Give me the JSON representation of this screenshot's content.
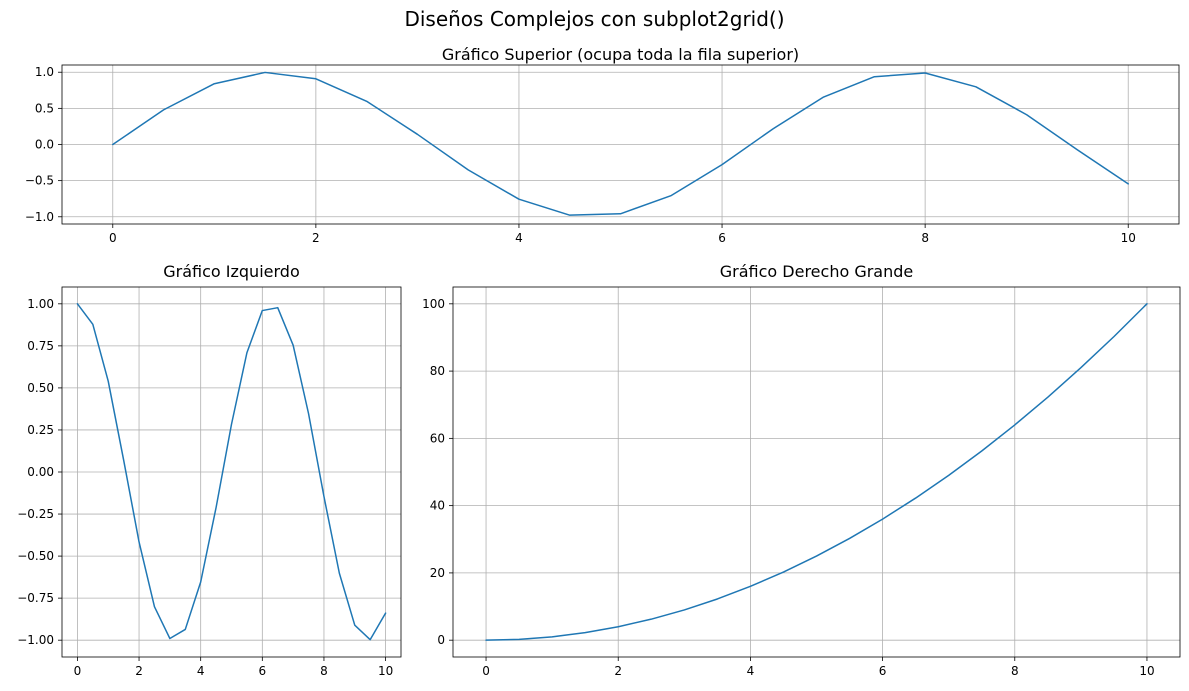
{
  "figure": {
    "title": "Diseños Complejos con subplot2grid()"
  },
  "chart_data": [
    {
      "type": "line",
      "title": "Gráfico Superior (ocupa toda la fila superior)",
      "xlabel": "",
      "ylabel": "",
      "xlim": [
        -0.5,
        10.5
      ],
      "ylim": [
        -1.1,
        1.1
      ],
      "xticks": [
        0,
        2,
        4,
        6,
        8,
        10
      ],
      "yticks": [
        -1.0,
        -0.5,
        0.0,
        0.5,
        1.0
      ],
      "xtick_labels": [
        "0",
        "2",
        "4",
        "6",
        "8",
        "10"
      ],
      "ytick_labels": [
        "−1.0",
        "−0.5",
        "0.0",
        "0.5",
        "1.0"
      ],
      "grid": true,
      "series": [
        {
          "color": "#1f77b4",
          "x": [
            0,
            0.5,
            1,
            1.5,
            2,
            2.5,
            3,
            3.5,
            4,
            4.5,
            5,
            5.5,
            6,
            6.5,
            7,
            7.5,
            8,
            8.5,
            9,
            9.5,
            10
          ],
          "y": [
            0,
            0.479,
            0.841,
            0.997,
            0.909,
            0.598,
            0.141,
            -0.351,
            -0.757,
            -0.978,
            -0.959,
            -0.706,
            -0.279,
            0.215,
            0.657,
            0.938,
            0.989,
            0.798,
            0.412,
            -0.075,
            -0.544
          ]
        }
      ]
    },
    {
      "type": "line",
      "title": "Gráfico Izquierdo",
      "xlabel": "",
      "ylabel": "",
      "xlim": [
        -0.5,
        10.5
      ],
      "ylim": [
        -1.1,
        1.1
      ],
      "xticks": [
        0,
        2,
        4,
        6,
        8,
        10
      ],
      "yticks": [
        -1.0,
        -0.75,
        -0.5,
        -0.25,
        0.0,
        0.25,
        0.5,
        0.75,
        1.0
      ],
      "xtick_labels": [
        "0",
        "2",
        "4",
        "6",
        "8",
        "10"
      ],
      "ytick_labels": [
        "−1.00",
        "−0.75",
        "−0.50",
        "−0.25",
        "0.00",
        "0.25",
        "0.50",
        "0.75",
        "1.00"
      ],
      "grid": true,
      "series": [
        {
          "color": "#1f77b4",
          "x": [
            0,
            0.5,
            1,
            1.5,
            2,
            2.5,
            3,
            3.5,
            4,
            4.5,
            5,
            5.5,
            6,
            6.5,
            7,
            7.5,
            8,
            8.5,
            9,
            9.5,
            10
          ],
          "y": [
            1,
            0.878,
            0.54,
            0.071,
            -0.416,
            -0.801,
            -0.99,
            -0.936,
            -0.654,
            -0.211,
            0.284,
            0.709,
            0.96,
            0.977,
            0.754,
            0.347,
            -0.146,
            -0.602,
            -0.911,
            -0.997,
            -0.839
          ]
        }
      ]
    },
    {
      "type": "line",
      "title": "Gráfico Derecho Grande",
      "xlabel": "",
      "ylabel": "",
      "xlim": [
        -0.5,
        10.5
      ],
      "ylim": [
        -5,
        105
      ],
      "xticks": [
        0,
        2,
        4,
        6,
        8,
        10
      ],
      "yticks": [
        0,
        20,
        40,
        60,
        80,
        100
      ],
      "xtick_labels": [
        "0",
        "2",
        "4",
        "6",
        "8",
        "10"
      ],
      "ytick_labels": [
        "0",
        "20",
        "40",
        "60",
        "80",
        "100"
      ],
      "grid": true,
      "series": [
        {
          "color": "#1f77b4",
          "x": [
            0,
            0.5,
            1,
            1.5,
            2,
            2.5,
            3,
            3.5,
            4,
            4.5,
            5,
            5.5,
            6,
            6.5,
            7,
            7.5,
            8,
            8.5,
            9,
            9.5,
            10
          ],
          "y": [
            0,
            0.25,
            1,
            2.25,
            4,
            6.25,
            9,
            12.25,
            16,
            20.25,
            25,
            30.25,
            36,
            42.25,
            49,
            56.25,
            64,
            72.25,
            81,
            90.25,
            100
          ]
        }
      ]
    }
  ]
}
